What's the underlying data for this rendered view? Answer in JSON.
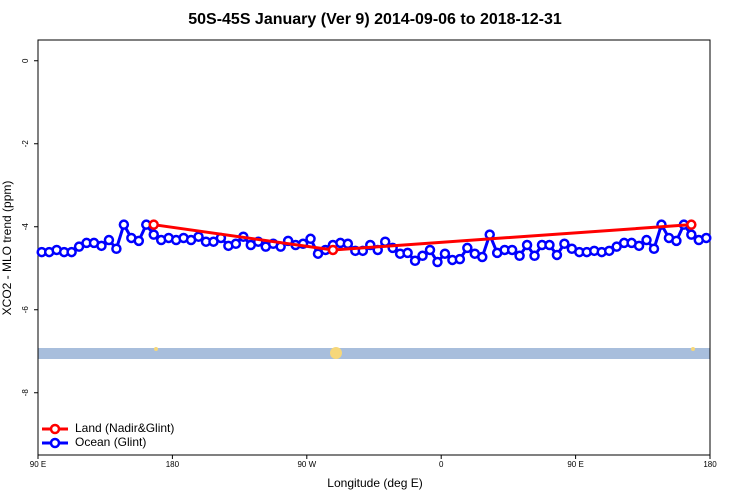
{
  "chart_data": {
    "type": "line",
    "title": "50S-45S January (Ver 9)   2014-09-06 to 2018-12-31",
    "xlabel": "Longitude (deg E)",
    "ylabel": "XCO2 - MLO trend (ppm)",
    "xlim": [
      90,
      540
    ],
    "ylim": [
      -9.5,
      0.5
    ],
    "xticks": [
      {
        "value": 90,
        "label": "90 E"
      },
      180,
      {
        "value": 270,
        "label": "90 W"
      },
      {
        "value": 360,
        "label": "0"
      },
      {
        "value": 450,
        "label": "90 E"
      },
      {
        "value": 540,
        "label": "180"
      }
    ],
    "yticks": [
      0,
      -2,
      -4,
      -6,
      -8
    ],
    "legend": "bottomleft",
    "series": [
      {
        "name": "Land (Nadir&Glint)",
        "color": "#ff0000",
        "x": [
          167.5,
          287.5,
          527.5
        ],
        "values": [
          -3.95,
          -4.56,
          -3.95
        ]
      },
      {
        "name": "Ocean (Glint)",
        "color": "#0000ff",
        "x": [
          92.5,
          97.5,
          102.5,
          107.5,
          112.5,
          117.5,
          122.5,
          127.5,
          132.5,
          137.5,
          142.5,
          147.5,
          152.5,
          157.5,
          162.5,
          167.5,
          172.5,
          177.5,
          182.5,
          187.5,
          192.5,
          197.5,
          202.5,
          207.5,
          212.5,
          217.5,
          222.5,
          227.5,
          232.5,
          237.5,
          242.5,
          247.5,
          252.5,
          257.5,
          262.5,
          267.5,
          272.5,
          277.5,
          282.5,
          287.5,
          292.5,
          297.5,
          302.5,
          307.5,
          312.5,
          317.5,
          322.5,
          327.5,
          332.5,
          337.5,
          342.5,
          347.5,
          352.5,
          357.5,
          362.5,
          367.5,
          372.5,
          377.5,
          382.5,
          387.5,
          392.5,
          397.5,
          402.5,
          407.5,
          412.5,
          417.5,
          422.5,
          427.5,
          432.5,
          437.5,
          442.5,
          447.5,
          452.5,
          457.5,
          462.5,
          467.5,
          472.5,
          477.5,
          482.5,
          487.5,
          492.5,
          497.5,
          502.5,
          507.5,
          512.5,
          517.5,
          522.5,
          527.5,
          532.5,
          537.5
        ],
        "values": [
          -4.61,
          -4.61,
          -4.56,
          -4.61,
          -4.61,
          -4.48,
          -4.39,
          -4.39,
          -4.46,
          -4.32,
          -4.53,
          -3.95,
          -4.27,
          -4.34,
          -3.95,
          -4.19,
          -4.32,
          -4.27,
          -4.32,
          -4.27,
          -4.32,
          -4.24,
          -4.36,
          -4.36,
          -4.27,
          -4.46,
          -4.41,
          -4.24,
          -4.44,
          -4.36,
          -4.48,
          -4.41,
          -4.48,
          -4.34,
          -4.44,
          -4.41,
          -4.29,
          -4.65,
          -4.56,
          -4.44,
          -4.39,
          -4.41,
          -4.58,
          -4.58,
          -4.44,
          -4.56,
          -4.36,
          -4.51,
          -4.65,
          -4.63,
          -4.82,
          -4.7,
          -4.56,
          -4.85,
          -4.65,
          -4.8,
          -4.78,
          -4.51,
          -4.65,
          -4.73,
          -4.19,
          -4.63,
          -4.56,
          -4.56,
          -4.7,
          -4.44,
          -4.7,
          -4.44,
          -4.44,
          -4.68,
          -4.41,
          -4.53,
          -4.61,
          -4.61,
          -4.58,
          -4.61,
          -4.58,
          -4.48,
          -4.39,
          -4.39,
          -4.46,
          -4.32,
          -4.53,
          -3.95,
          -4.27,
          -4.34,
          -3.95,
          -4.19,
          -4.32,
          -4.27
        ]
      }
    ]
  }
}
